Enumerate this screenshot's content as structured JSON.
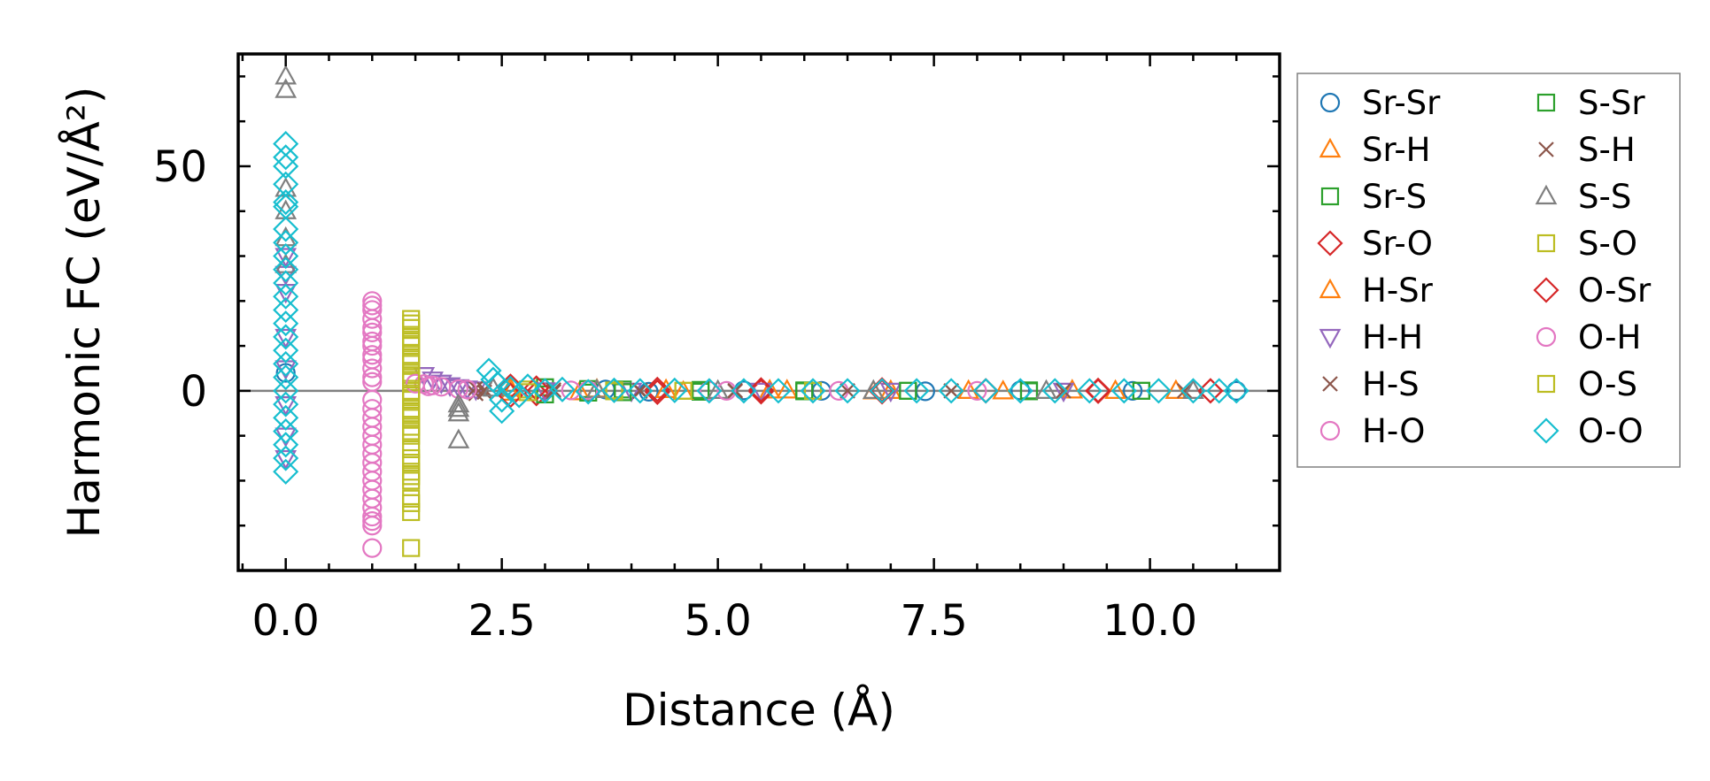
{
  "chart_data": {
    "type": "scatter",
    "title": "",
    "xlabel": "Distance (Å)",
    "ylabel": "Harmonic FC (eV/Å²)",
    "xlim": [
      -0.55,
      11.5
    ],
    "ylim": [
      -40,
      75
    ],
    "xticks": [
      0.0,
      2.5,
      5.0,
      7.5,
      10.0
    ],
    "xtick_labels": [
      "0.0",
      "2.5",
      "5.0",
      "7.5",
      "10.0"
    ],
    "yticks": [
      0,
      50
    ],
    "ytick_labels": [
      "0",
      "50"
    ],
    "zero_line": true,
    "grid": false,
    "legend": {
      "placement": "outside-right",
      "columns": 2
    },
    "series": [
      {
        "name": "Sr-Sr",
        "marker": "circle",
        "color": "#1f77b4",
        "points": [
          [
            0.0,
            4.0
          ],
          [
            3.7,
            0.3
          ],
          [
            4.2,
            -0.2
          ],
          [
            5.3,
            0.1
          ],
          [
            6.2,
            0.0
          ],
          [
            7.4,
            -0.1
          ],
          [
            8.5,
            0.1
          ],
          [
            9.8,
            0.0
          ],
          [
            11.0,
            0.0
          ]
        ]
      },
      {
        "name": "Sr-H",
        "marker": "triangle-up",
        "color": "#ff7f0e",
        "points": [
          [
            2.6,
            0.5
          ],
          [
            3.4,
            -0.3
          ],
          [
            4.4,
            0.2
          ],
          [
            5.6,
            0.1
          ],
          [
            6.8,
            -0.1
          ],
          [
            7.9,
            0.0
          ],
          [
            9.1,
            0.1
          ],
          [
            10.3,
            0.0
          ]
        ]
      },
      {
        "name": "Sr-S",
        "marker": "square",
        "color": "#2ca02c",
        "points": [
          [
            3.0,
            0.8
          ],
          [
            3.5,
            -0.4
          ],
          [
            3.9,
            0.3
          ],
          [
            4.8,
            -0.2
          ],
          [
            6.0,
            0.1
          ],
          [
            7.2,
            0.0
          ],
          [
            8.6,
            0.1
          ],
          [
            9.9,
            0.0
          ]
        ]
      },
      {
        "name": "Sr-O",
        "marker": "diamond",
        "color": "#d62728",
        "points": [
          [
            2.6,
            1.0
          ],
          [
            2.9,
            -0.6
          ],
          [
            4.3,
            0.3
          ],
          [
            5.5,
            -0.2
          ],
          [
            6.9,
            0.2
          ],
          [
            8.1,
            0.0
          ],
          [
            9.4,
            0.1
          ],
          [
            10.7,
            0.0
          ]
        ]
      },
      {
        "name": "H-Sr",
        "marker": "triangle-up",
        "color": "#ff7f0e",
        "points": [
          [
            2.6,
            -0.4
          ],
          [
            3.6,
            0.3
          ],
          [
            4.6,
            -0.2
          ],
          [
            5.8,
            0.1
          ],
          [
            7.0,
            0.0
          ],
          [
            8.3,
            -0.1
          ],
          [
            9.6,
            0.0
          ]
        ]
      },
      {
        "name": "H-H",
        "marker": "triangle-down",
        "color": "#9467bd",
        "points": [
          [
            0.0,
            30.0
          ],
          [
            0.0,
            26.0
          ],
          [
            0.0,
            22.0
          ],
          [
            0.0,
            12.0
          ],
          [
            0.0,
            5.0
          ],
          [
            0.0,
            -3.0
          ],
          [
            0.0,
            -10.0
          ],
          [
            0.0,
            -15.0
          ],
          [
            1.6,
            3.5
          ],
          [
            1.7,
            2.5
          ],
          [
            1.8,
            1.8
          ],
          [
            1.9,
            1.2
          ],
          [
            2.0,
            0.8
          ],
          [
            2.1,
            0.5
          ],
          [
            2.2,
            0.3
          ],
          [
            3.0,
            0.1
          ],
          [
            4.0,
            0.0
          ],
          [
            5.5,
            0.0
          ],
          [
            7.0,
            0.0
          ],
          [
            9.0,
            0.0
          ]
        ]
      },
      {
        "name": "H-S",
        "marker": "x",
        "color": "#8c564b",
        "points": [
          [
            2.2,
            0.6
          ],
          [
            2.3,
            -0.3
          ],
          [
            3.1,
            0.2
          ],
          [
            4.1,
            -0.1
          ],
          [
            5.2,
            0.1
          ],
          [
            6.5,
            0.0
          ],
          [
            7.7,
            0.0
          ],
          [
            9.0,
            0.0
          ],
          [
            10.4,
            0.0
          ]
        ]
      },
      {
        "name": "H-O",
        "marker": "circle",
        "color": "#e377c2",
        "points": [
          [
            1.0,
            20.0
          ],
          [
            1.0,
            19.0
          ],
          [
            1.0,
            16.0
          ],
          [
            1.0,
            13.0
          ],
          [
            1.0,
            10.0
          ],
          [
            1.0,
            8.0
          ],
          [
            1.0,
            5.0
          ],
          [
            1.0,
            2.0
          ],
          [
            1.0,
            -2.0
          ],
          [
            1.0,
            -6.0
          ],
          [
            1.0,
            -10.0
          ],
          [
            1.0,
            -14.0
          ],
          [
            1.0,
            -18.0
          ],
          [
            1.0,
            -22.0
          ],
          [
            1.0,
            -26.0
          ],
          [
            1.0,
            -29.0
          ],
          [
            1.0,
            -35.0
          ],
          [
            1.6,
            1.5
          ],
          [
            1.7,
            1.2
          ],
          [
            1.8,
            0.9
          ],
          [
            2.0,
            0.4
          ],
          [
            3.3,
            0.1
          ],
          [
            4.9,
            0.0
          ],
          [
            6.4,
            0.0
          ],
          [
            8.0,
            0.0
          ]
        ]
      },
      {
        "name": "S-Sr",
        "marker": "square",
        "color": "#2ca02c",
        "points": [
          [
            3.0,
            -0.8
          ],
          [
            3.5,
            0.4
          ],
          [
            3.9,
            -0.3
          ],
          [
            4.8,
            0.2
          ],
          [
            6.0,
            -0.1
          ],
          [
            7.2,
            0.0
          ],
          [
            8.6,
            -0.1
          ],
          [
            9.9,
            0.0
          ]
        ]
      },
      {
        "name": "S-H",
        "marker": "x",
        "color": "#8c564b",
        "points": [
          [
            2.2,
            -0.6
          ],
          [
            2.3,
            0.3
          ],
          [
            3.1,
            -0.2
          ],
          [
            4.1,
            0.1
          ],
          [
            5.2,
            -0.1
          ],
          [
            6.5,
            0.0
          ],
          [
            7.7,
            0.0
          ],
          [
            9.0,
            0.0
          ]
        ]
      },
      {
        "name": "S-S",
        "marker": "triangle-up",
        "color": "#7f7f7f",
        "points": [
          [
            0.0,
            70.0
          ],
          [
            0.0,
            67.0
          ],
          [
            0.0,
            45.0
          ],
          [
            0.0,
            40.0
          ],
          [
            0.0,
            34.0
          ],
          [
            0.0,
            28.0
          ],
          [
            2.0,
            -3.0
          ],
          [
            2.0,
            -4.0
          ],
          [
            2.0,
            -5.0
          ],
          [
            2.0,
            -11.0
          ],
          [
            2.4,
            0.5
          ],
          [
            3.6,
            0.2
          ],
          [
            5.0,
            0.0
          ],
          [
            6.8,
            0.0
          ],
          [
            8.8,
            0.0
          ],
          [
            10.5,
            0.0
          ]
        ]
      },
      {
        "name": "S-O",
        "marker": "square",
        "color": "#bcbd22",
        "points": [
          [
            1.45,
            16.0
          ],
          [
            1.45,
            14.0
          ],
          [
            1.45,
            12.0
          ],
          [
            1.45,
            10.0
          ],
          [
            1.45,
            8.0
          ],
          [
            1.45,
            6.0
          ],
          [
            1.45,
            4.0
          ],
          [
            1.45,
            2.0
          ],
          [
            1.45,
            0.0
          ],
          [
            1.45,
            -2.0
          ],
          [
            1.45,
            -4.0
          ],
          [
            1.45,
            -6.0
          ],
          [
            1.45,
            -8.0
          ],
          [
            1.45,
            -10.0
          ],
          [
            1.45,
            -15.0
          ],
          [
            1.45,
            -18.0
          ],
          [
            1.45,
            -20.0
          ],
          [
            1.45,
            -25.0
          ],
          [
            1.45,
            -27.0
          ],
          [
            1.45,
            -35.0
          ],
          [
            2.8,
            0.3
          ],
          [
            3.8,
            0.1
          ],
          [
            4.6,
            0.0
          ],
          [
            6.1,
            0.0
          ]
        ]
      },
      {
        "name": "O-Sr",
        "marker": "diamond",
        "color": "#d62728",
        "points": [
          [
            2.6,
            -1.0
          ],
          [
            2.9,
            0.6
          ],
          [
            4.3,
            -0.3
          ],
          [
            5.5,
            0.2
          ],
          [
            6.9,
            -0.2
          ],
          [
            8.1,
            0.0
          ],
          [
            9.4,
            -0.1
          ],
          [
            10.7,
            0.0
          ]
        ]
      },
      {
        "name": "O-H",
        "marker": "circle",
        "color": "#e377c2",
        "points": [
          [
            1.0,
            18.0
          ],
          [
            1.0,
            14.0
          ],
          [
            1.0,
            11.0
          ],
          [
            1.0,
            7.0
          ],
          [
            1.0,
            3.0
          ],
          [
            1.0,
            -4.0
          ],
          [
            1.0,
            -8.0
          ],
          [
            1.0,
            -12.0
          ],
          [
            1.0,
            -16.0
          ],
          [
            1.0,
            -20.0
          ],
          [
            1.0,
            -24.0
          ],
          [
            1.0,
            -28.0
          ],
          [
            1.0,
            -30.0
          ],
          [
            1.5,
            1.6
          ],
          [
            1.65,
            1.0
          ],
          [
            2.1,
            0.3
          ],
          [
            3.5,
            0.1
          ],
          [
            5.1,
            0.0
          ]
        ]
      },
      {
        "name": "O-S",
        "marker": "square",
        "color": "#bcbd22",
        "points": [
          [
            1.45,
            15.0
          ],
          [
            1.45,
            11.0
          ],
          [
            1.45,
            7.0
          ],
          [
            1.45,
            3.0
          ],
          [
            1.45,
            -1.0
          ],
          [
            1.45,
            -5.0
          ],
          [
            1.45,
            -9.0
          ],
          [
            1.45,
            -13.0
          ],
          [
            1.45,
            -16.0
          ],
          [
            1.45,
            -19.0
          ],
          [
            1.45,
            -24.0
          ],
          [
            2.8,
            -0.3
          ],
          [
            3.8,
            -0.1
          ],
          [
            4.6,
            0.0
          ]
        ]
      },
      {
        "name": "O-O",
        "marker": "diamond",
        "color": "#17becf",
        "points": [
          [
            0.0,
            55.0
          ],
          [
            0.0,
            52.0
          ],
          [
            0.0,
            50.0
          ],
          [
            0.0,
            46.0
          ],
          [
            0.0,
            42.0
          ],
          [
            0.0,
            41.0
          ],
          [
            0.0,
            36.0
          ],
          [
            0.0,
            33.0
          ],
          [
            0.0,
            30.0
          ],
          [
            0.0,
            27.0
          ],
          [
            0.0,
            24.0
          ],
          [
            0.0,
            21.0
          ],
          [
            0.0,
            18.0
          ],
          [
            0.0,
            15.0
          ],
          [
            0.0,
            12.0
          ],
          [
            0.0,
            9.0
          ],
          [
            0.0,
            6.0
          ],
          [
            0.0,
            3.0
          ],
          [
            0.0,
            0.0
          ],
          [
            0.0,
            -3.0
          ],
          [
            0.0,
            -6.0
          ],
          [
            0.0,
            -9.0
          ],
          [
            0.0,
            -12.0
          ],
          [
            0.0,
            -15.0
          ],
          [
            0.0,
            -18.0
          ],
          [
            2.35,
            4.5
          ],
          [
            2.4,
            2.5
          ],
          [
            2.45,
            1.5
          ],
          [
            2.5,
            -2.0
          ],
          [
            2.5,
            -4.5
          ],
          [
            2.6,
            0.5
          ],
          [
            2.7,
            -1.0
          ],
          [
            2.8,
            1.0
          ],
          [
            3.0,
            0.0
          ],
          [
            3.2,
            0.3
          ],
          [
            3.5,
            -0.2
          ],
          [
            3.8,
            0.1
          ],
          [
            4.1,
            0.0
          ],
          [
            4.5,
            0.1
          ],
          [
            4.9,
            0.0
          ],
          [
            5.3,
            0.0
          ],
          [
            5.7,
            0.0
          ],
          [
            6.1,
            0.0
          ],
          [
            6.5,
            0.0
          ],
          [
            6.9,
            0.0
          ],
          [
            7.3,
            0.0
          ],
          [
            7.7,
            0.0
          ],
          [
            8.1,
            0.0
          ],
          [
            8.5,
            0.0
          ],
          [
            8.9,
            0.0
          ],
          [
            9.3,
            0.0
          ],
          [
            9.7,
            0.0
          ],
          [
            10.1,
            0.0
          ],
          [
            10.5,
            0.0
          ],
          [
            10.8,
            0.0
          ],
          [
            11.0,
            0.0
          ]
        ]
      }
    ]
  }
}
